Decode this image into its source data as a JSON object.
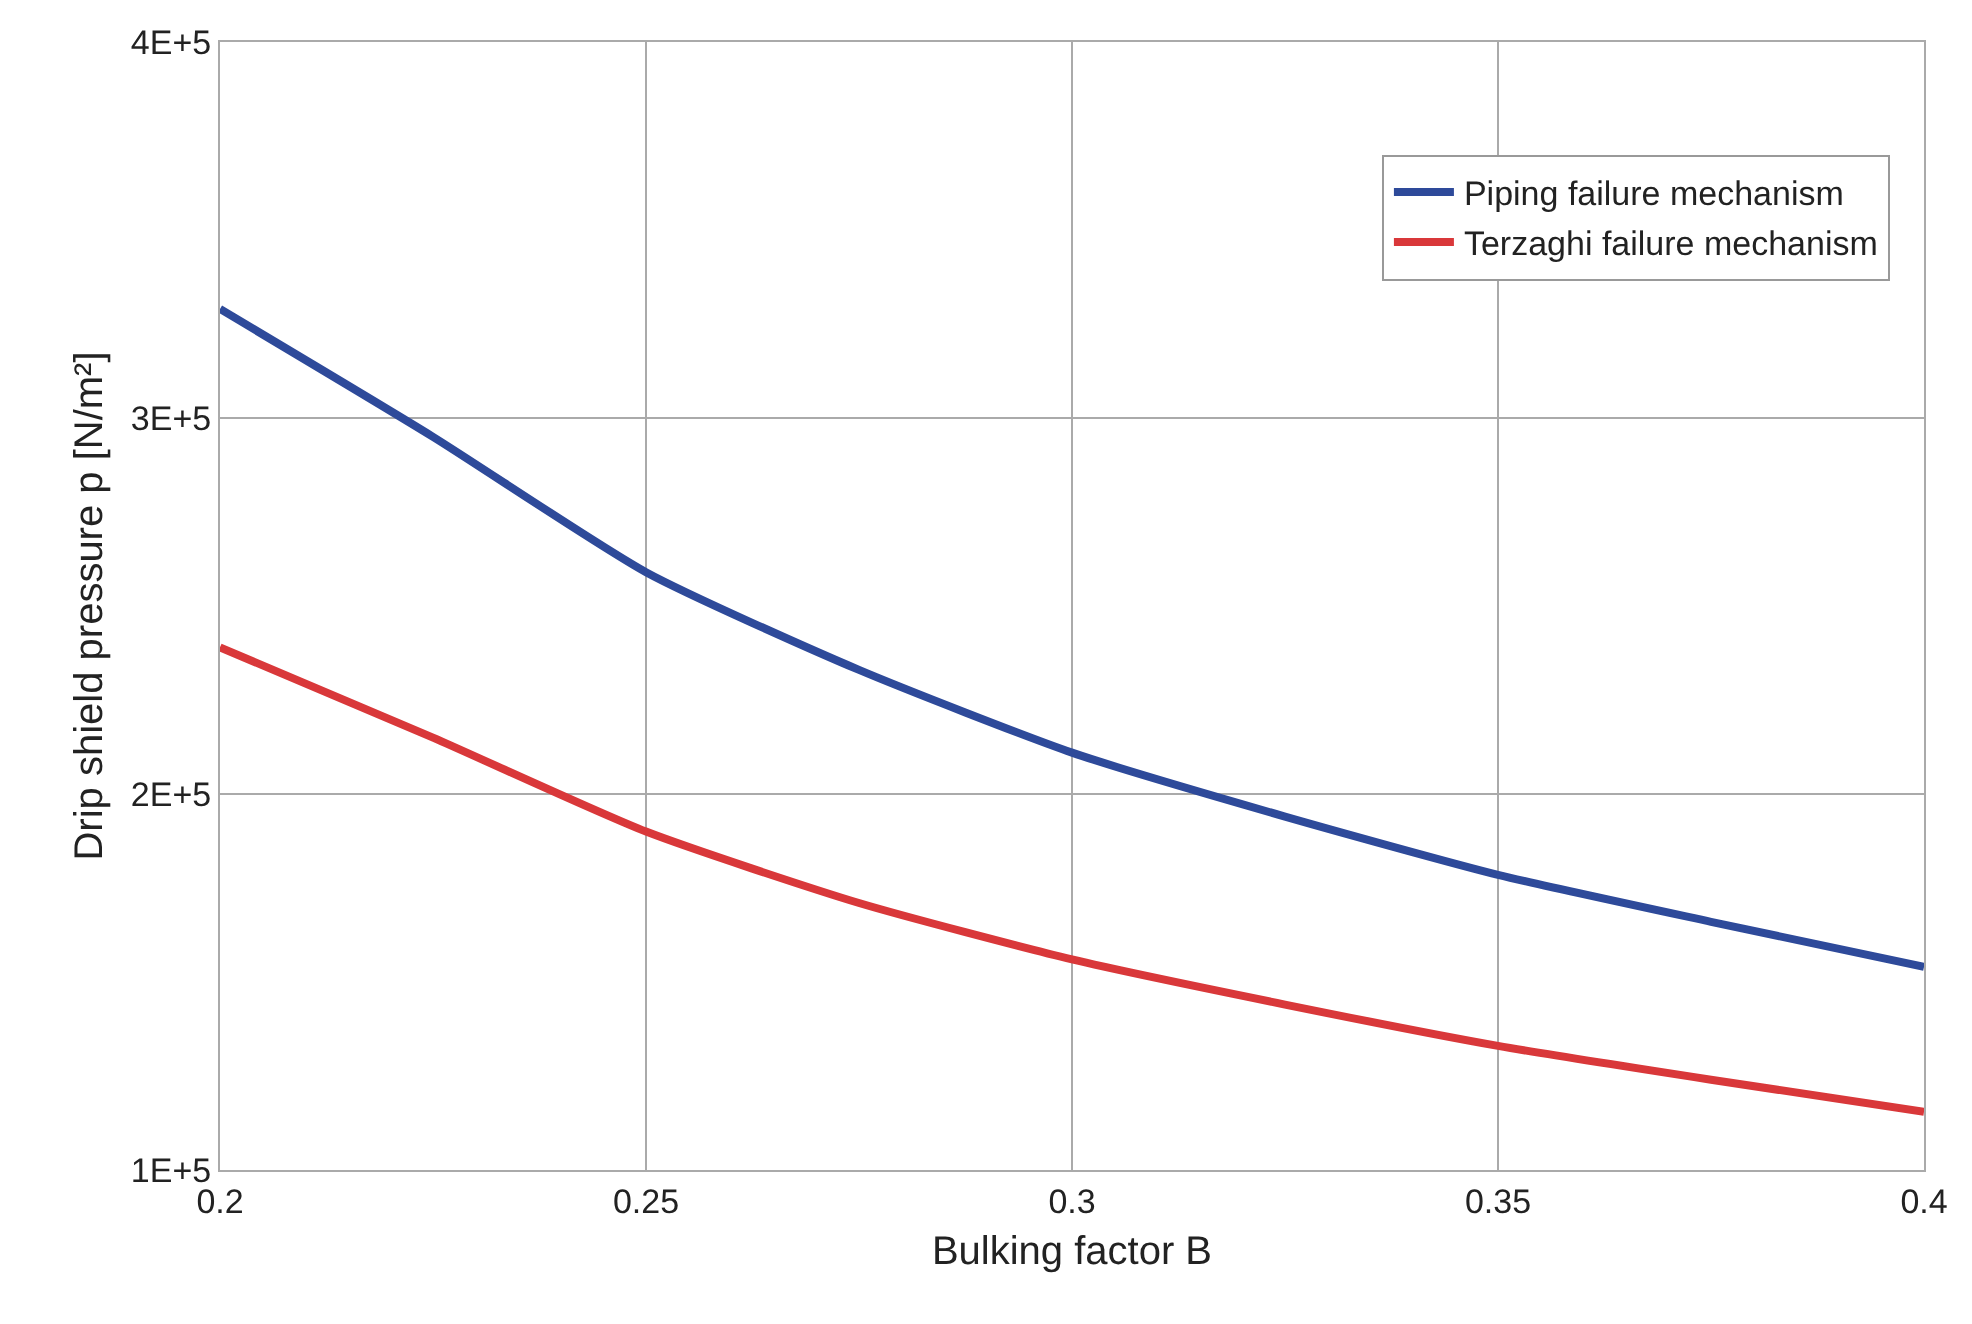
{
  "chart_data": {
    "type": "line",
    "xlabel": "Bulking factor B",
    "ylabel": "Drip shield pressure p [N/m²]",
    "x": [
      0.2,
      0.225,
      0.25,
      0.275,
      0.3,
      0.325,
      0.35,
      0.375,
      0.4
    ],
    "series": [
      {
        "name": "Piping failure mechanism",
        "color": "#2e4a9a",
        "values": [
          329000,
          295000,
          259000,
          233000,
          211000,
          194000,
          178500,
          166000,
          154000
        ]
      },
      {
        "name": "Terzaghi failure mechanism",
        "color": "#d9383a",
        "values": [
          239000,
          215000,
          190000,
          171000,
          156000,
          144000,
          133000,
          124000,
          115500
        ]
      }
    ],
    "xlim": [
      0.2,
      0.4
    ],
    "xticks": [
      0.2,
      0.25,
      0.3,
      0.35,
      0.4
    ],
    "ylim": [
      100000,
      400000
    ],
    "yticks": [
      {
        "value": 100000,
        "label": "1E+5"
      },
      {
        "value": 200000,
        "label": "2E+5"
      },
      {
        "value": 300000,
        "label": "3E+5"
      },
      {
        "value": 400000,
        "label": "4E+5"
      }
    ],
    "grid": true,
    "legend": "top right",
    "line_style": "solid",
    "marker": "none"
  }
}
